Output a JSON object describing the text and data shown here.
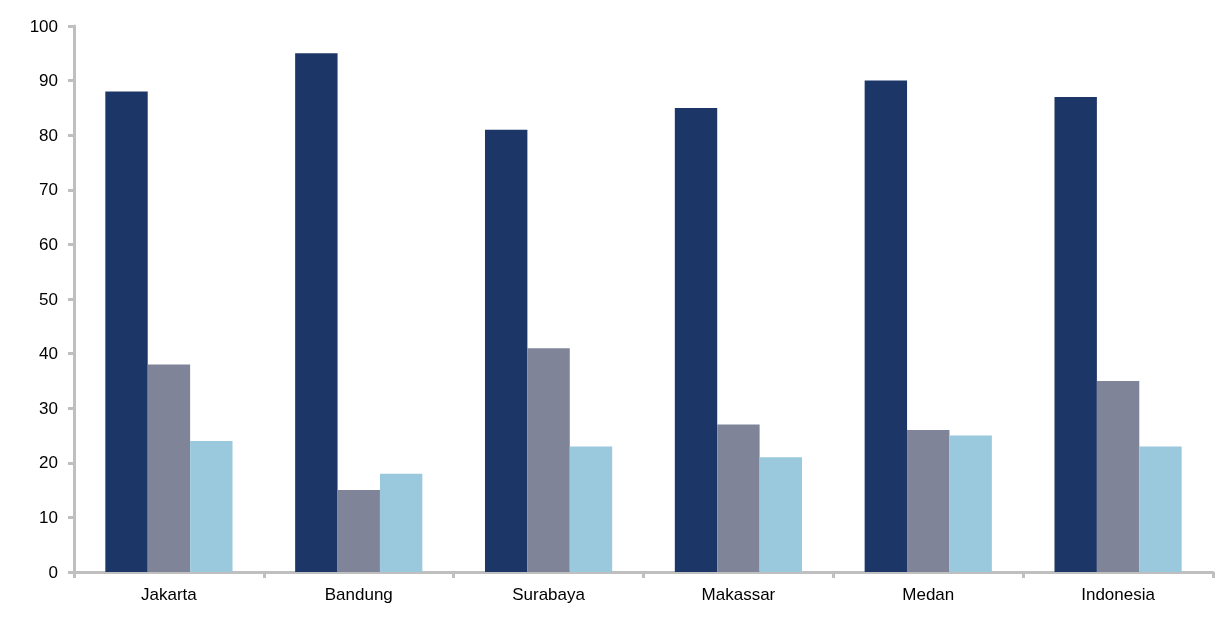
{
  "chart_data": {
    "type": "bar",
    "categories": [
      "Jakarta",
      "Bandung",
      "Surabaya",
      "Makassar",
      "Medan",
      "Indonesia"
    ],
    "series": [
      {
        "color": "#1c3668",
        "values": [
          88,
          95,
          81,
          85,
          90,
          87
        ]
      },
      {
        "color": "#7f8499",
        "values": [
          38,
          15,
          41,
          27,
          26,
          35
        ]
      },
      {
        "color": "#9ac8dc",
        "values": [
          24,
          18,
          23,
          21,
          25,
          23
        ]
      }
    ],
    "ylim": [
      0,
      100
    ],
    "yticks": [
      0,
      10,
      20,
      30,
      40,
      50,
      60,
      70,
      80,
      90,
      100
    ]
  }
}
